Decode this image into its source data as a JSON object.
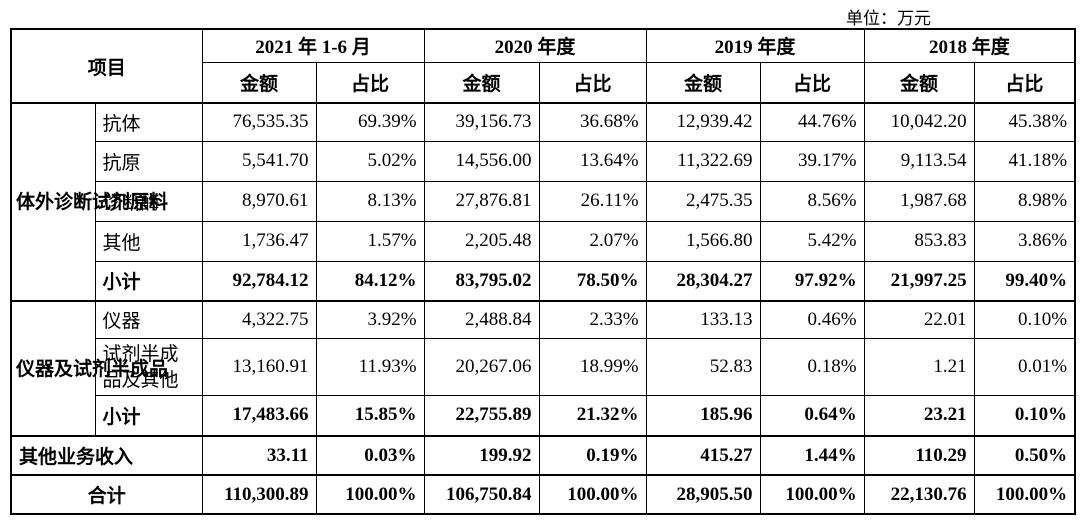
{
  "unit_label": "单位：万元",
  "header": {
    "item": "项目",
    "periods": [
      "2021 年 1-6 月",
      "2020 年度",
      "2019 年度",
      "2018 年度"
    ],
    "amount": "金额",
    "ratio": "占比"
  },
  "groups": [
    {
      "name": "体外诊断试剂原料",
      "rows": [
        {
          "label": "抗体",
          "values": [
            "76,535.35",
            "69.39%",
            "39,156.73",
            "36.68%",
            "12,939.42",
            "44.76%",
            "10,042.20",
            "45.38%"
          ]
        },
        {
          "label": "抗原",
          "values": [
            "5,541.70",
            "5.02%",
            "14,556.00",
            "13.64%",
            "11,322.69",
            "39.17%",
            "9,113.54",
            "41.18%"
          ]
        },
        {
          "label": "诊断酶",
          "values": [
            "8,970.61",
            "8.13%",
            "27,876.81",
            "26.11%",
            "2,475.35",
            "8.56%",
            "1,987.68",
            "8.98%"
          ]
        },
        {
          "label": "其他",
          "values": [
            "1,736.47",
            "1.57%",
            "2,205.48",
            "2.07%",
            "1,566.80",
            "5.42%",
            "853.83",
            "3.86%"
          ]
        }
      ],
      "subtotal": {
        "label": "小计",
        "values": [
          "92,784.12",
          "84.12%",
          "83,795.02",
          "78.50%",
          "28,304.27",
          "97.92%",
          "21,997.25",
          "99.40%"
        ]
      }
    },
    {
      "name": "仪器及试剂半成品",
      "rows": [
        {
          "label": "仪器",
          "values": [
            "4,322.75",
            "3.92%",
            "2,488.84",
            "2.33%",
            "133.13",
            "0.46%",
            "22.01",
            "0.10%"
          ]
        },
        {
          "label": "试剂半成品及其他",
          "values": [
            "13,160.91",
            "11.93%",
            "20,267.06",
            "18.99%",
            "52.83",
            "0.18%",
            "1.21",
            "0.01%"
          ]
        }
      ],
      "subtotal": {
        "label": "小计",
        "values": [
          "17,483.66",
          "15.85%",
          "22,755.89",
          "21.32%",
          "185.96",
          "0.64%",
          "23.21",
          "0.10%"
        ]
      }
    }
  ],
  "other_income": {
    "label": "其他业务收入",
    "values": [
      "33.11",
      "0.03%",
      "199.92",
      "0.19%",
      "415.27",
      "1.44%",
      "110.29",
      "0.50%"
    ]
  },
  "total": {
    "label": "合计",
    "values": [
      "110,300.89",
      "100.00%",
      "106,750.84",
      "100.00%",
      "28,905.50",
      "100.00%",
      "22,130.76",
      "100.00%"
    ]
  }
}
